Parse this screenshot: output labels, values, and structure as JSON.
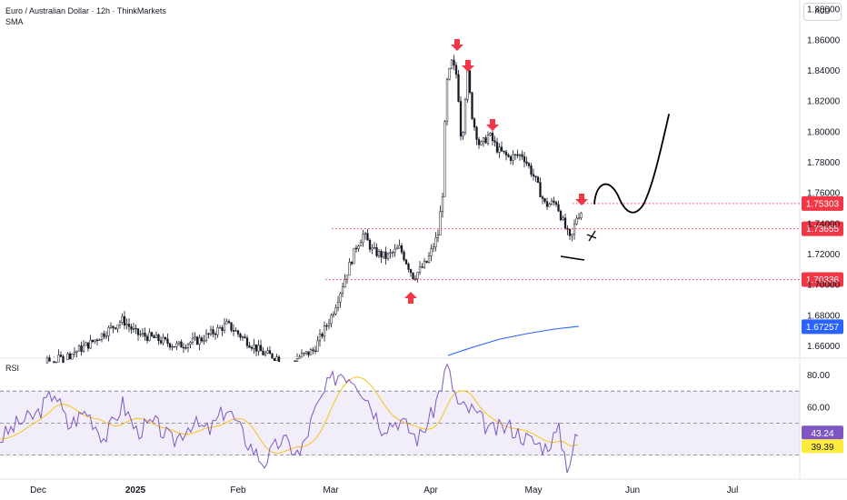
{
  "header": {
    "title": "Euro / Australian Dollar · 12h · ThinkMarkets",
    "indicator": "SMA",
    "currency": "AUD"
  },
  "chart_data": [
    {
      "type": "candlestick",
      "name": "price",
      "y_ticks": [
        "1.66000",
        "1.68000",
        "1.70000",
        "1.72000",
        "1.74000",
        "1.76000",
        "1.78000",
        "1.80000",
        "1.82000",
        "1.84000",
        "1.86000",
        "1.88000"
      ],
      "ylim": [
        1.652,
        1.886
      ],
      "x_ticks": [
        "Dec",
        "2025",
        "Feb",
        "Mar",
        "Apr",
        "May",
        "Jun",
        "Jul"
      ],
      "price_labels": [
        {
          "value": "1.75303",
          "y": 1.75303,
          "color": "#f23645"
        },
        {
          "value": "1.73655",
          "y": 1.73655,
          "color": "#f23645"
        },
        {
          "value": "1.70336",
          "y": 1.70336,
          "color": "#f23645"
        },
        {
          "value": "1.67257",
          "y": 1.67257,
          "color": "#2962ff"
        }
      ],
      "levels": [
        1.75303,
        1.73655,
        1.70336
      ],
      "sma_color": "#2962ff",
      "down_arrows": 4,
      "up_arrows": 1
    },
    {
      "type": "line",
      "name": "RSI",
      "label": "RSI",
      "y_ticks": [
        "80.00",
        "60.00"
      ],
      "levels": [
        70,
        50,
        30
      ],
      "ylim": [
        15,
        90
      ],
      "values": [
        {
          "value": "43.24",
          "color": "#7e57c2"
        },
        {
          "value": "39.39",
          "color": "#ffeb3b"
        }
      ]
    }
  ]
}
